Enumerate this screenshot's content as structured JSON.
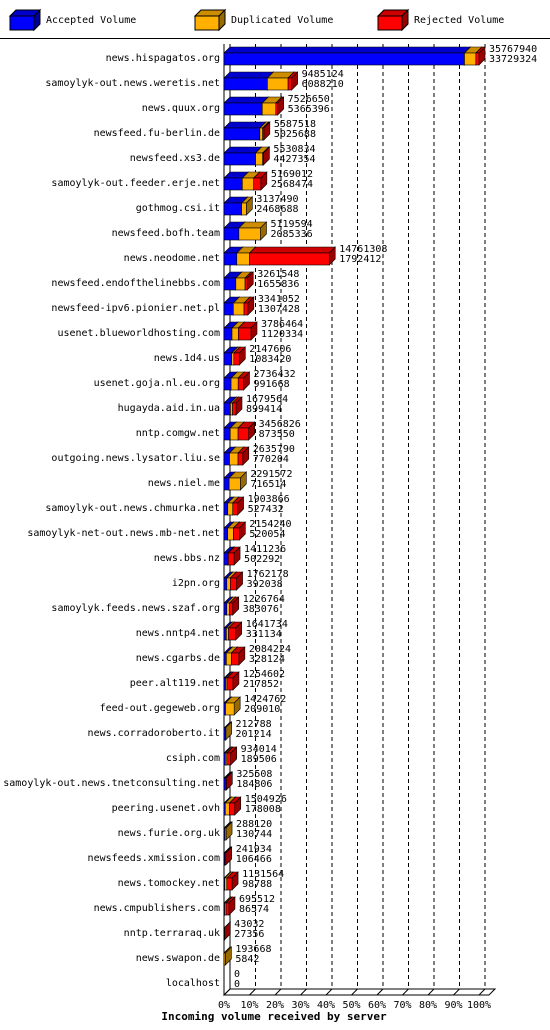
{
  "chart_data": {
    "type": "stacked-bar-3d",
    "orientation": "horizontal",
    "x_label": "Incoming volume received by server",
    "categories": [
      "news.hispagatos.org",
      "samoylyk-out.news.weretis.net",
      "news.quux.org",
      "newsfeed.fu-berlin.de",
      "newsfeed.xs3.de",
      "samoylyk-out.feeder.erje.net",
      "gothmog.csi.it",
      "newsfeed.bofh.team",
      "news.neodome.net",
      "newsfeed.endofthelinebbs.com",
      "newsfeed-ipv6.pionier.net.pl",
      "usenet.blueworldhosting.com",
      "news.1d4.us",
      "usenet.goja.nl.eu.org",
      "hugayda.aid.in.ua",
      "nntp.comgw.net",
      "outgoing.news.lysator.liu.se",
      "news.niel.me",
      "samoylyk-out.news.chmurka.net",
      "samoylyk-net-out.news.mb-net.net",
      "news.bbs.nz",
      "i2pn.org",
      "samoylyk.feeds.news.szaf.org",
      "news.nntp4.net",
      "news.cgarbs.de",
      "peer.alt119.net",
      "feed-out.gegeweb.org",
      "news.corradoroberto.it",
      "csiph.com",
      "samoylyk-out.news.tnetconsulting.net",
      "peering.usenet.ovh",
      "news.furie.org.uk",
      "newsfeeds.xmission.com",
      "news.tomockey.net",
      "news.cmpublishers.com",
      "nntp.terraraq.uk",
      "news.swapon.de",
      "localhost"
    ],
    "totals": [
      35767940,
      9485124,
      7526650,
      5587518,
      5530834,
      5169012,
      3137490,
      5119594,
      14761308,
      3261548,
      3341052,
      3786464,
      2147606,
      2736432,
      1679564,
      3456826,
      2635790,
      2291572,
      1903866,
      2154240,
      1411236,
      1762178,
      1226764,
      1641734,
      2084224,
      1254602,
      1424762,
      212788,
      934014,
      325508,
      1504926,
      288120,
      241934,
      1131564,
      695512,
      43032,
      193668,
      0
    ],
    "series": [
      {
        "name": "Accepted Volume",
        "color": "#0000ff",
        "values": [
          33729324,
          6088210,
          5365396,
          5025688,
          4427354,
          2568474,
          2468688,
          2085336,
          1792412,
          1655836,
          1307428,
          1120334,
          1083420,
          991668,
          899414,
          873550,
          770204,
          716514,
          527432,
          520054,
          502292,
          392038,
          383076,
          331134,
          328124,
          217852,
          209010,
          201214,
          189506,
          184806,
          178008,
          130744,
          106466,
          98788,
          86574,
          27356,
          5842,
          0
        ]
      },
      {
        "name": "Duplicated Volume",
        "color": "#ffb000",
        "values": [
          1600000,
          2900000,
          1900000,
          400000,
          1000000,
          1600000,
          668802,
          3034258,
          1800000,
          1300000,
          1500000,
          900000,
          300000,
          1000000,
          300000,
          1100000,
          1200000,
          1575058,
          700000,
          800000,
          100000,
          500000,
          400000,
          300000,
          700000,
          200000,
          1215752,
          11574,
          200000,
          0,
          600000,
          157376,
          0,
          300000,
          200000,
          0,
          187826,
          0
        ]
      },
      {
        "name": "Rejected Volume",
        "color": "#ff0000",
        "values": [
          438616,
          496914,
          261254,
          161830,
          103480,
          1000538,
          0,
          0,
          11168896,
          305712,
          533624,
          1766130,
          764186,
          744764,
          480150,
          1483276,
          665586,
          0,
          676434,
          834186,
          808944,
          870140,
          443688,
          1010600,
          1056100,
          836750,
          0,
          0,
          544508,
          140702,
          726918,
          0,
          135468,
          732776,
          408938,
          15676,
          0,
          0
        ]
      }
    ],
    "xlim": [
      0,
      35767940
    ],
    "xticks": [
      {
        "value": 0,
        "label": "0%"
      },
      {
        "value": 3576794,
        "label": "10%"
      },
      {
        "value": 7153588,
        "label": "20%"
      },
      {
        "value": 10730382,
        "label": "30%"
      },
      {
        "value": 14307176,
        "label": "40%"
      },
      {
        "value": 17883970,
        "label": "50%"
      },
      {
        "value": 21460764,
        "label": "60%"
      },
      {
        "value": 25037558,
        "label": "70%"
      },
      {
        "value": 28614352,
        "label": "80%"
      },
      {
        "value": 32191146,
        "label": "90%"
      },
      {
        "value": 35767940,
        "label": "100%"
      }
    ],
    "grid": true
  }
}
